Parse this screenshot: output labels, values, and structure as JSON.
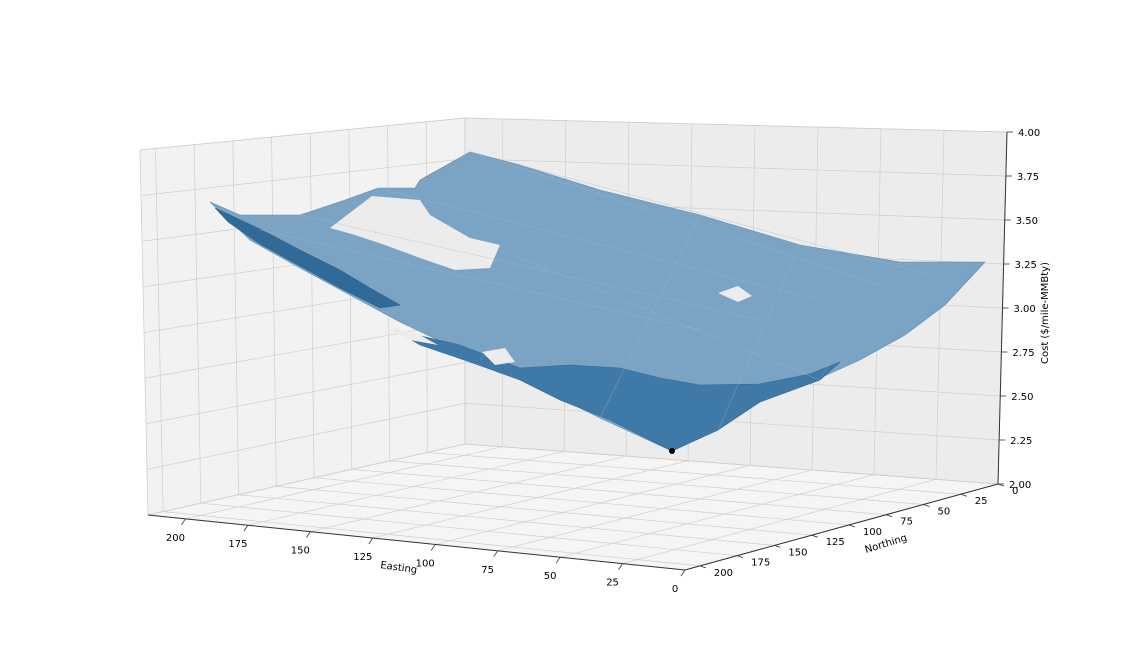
{
  "chart_data": {
    "type": "surface3d",
    "xlabel": "Easting",
    "ylabel": "Northing",
    "zlabel": "Cost ($/mile-MMBty)",
    "x_ticks": [
      "200",
      "175",
      "150",
      "125",
      "100",
      "75",
      "50",
      "25",
      "0"
    ],
    "y_ticks": [
      "0",
      "25",
      "50",
      "75",
      "100",
      "125",
      "150",
      "175",
      "200"
    ],
    "z_ticks": [
      "2.00",
      "2.25",
      "2.50",
      "2.75",
      "3.00",
      "3.25",
      "3.50",
      "3.75",
      "4.00"
    ],
    "xlim": [
      0,
      215
    ],
    "ylim": [
      0,
      210
    ],
    "zlim": [
      2.0,
      4.0
    ],
    "grid": true,
    "surface_color": "#1f77b4",
    "minimum_point": {
      "easting": 0,
      "northing": 200,
      "cost": 2.2,
      "color": "#000000"
    },
    "surface_corner_costs": {
      "easting_0_northing_200": 2.2,
      "easting_0_northing_0": 3.3,
      "easting_205_northing_200": 3.6,
      "easting_120_northing_0": 4.0
    }
  }
}
